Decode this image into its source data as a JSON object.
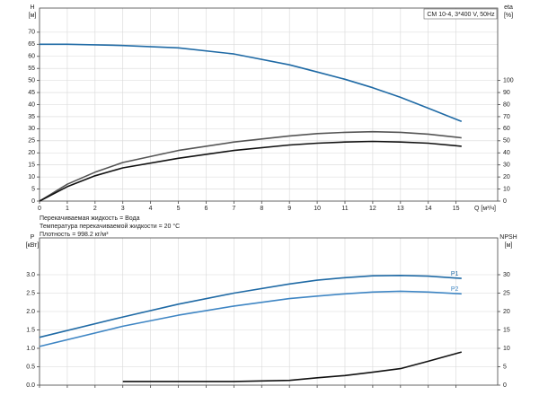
{
  "chart_data": [
    {
      "type": "line",
      "box_label": "CM 10-4, 3*400 V, 50Hz",
      "ylabel": "H",
      "yunit": "[м]",
      "y2label": "eta",
      "y2unit": "[%]",
      "xlabel": "Q [м³/ч]",
      "x": [
        0,
        1,
        2,
        3,
        5,
        7,
        9,
        10,
        11,
        12,
        13,
        14,
        15.2
      ],
      "xlim": [
        0,
        16.5
      ],
      "xticks": [
        0,
        1,
        2,
        3,
        4,
        5,
        6,
        7,
        8,
        9,
        10,
        11,
        12,
        13,
        14,
        15
      ],
      "xtick_labels": true,
      "ylim": [
        0,
        80
      ],
      "yticks": [
        0,
        5,
        10,
        15,
        20,
        25,
        30,
        35,
        40,
        45,
        50,
        55,
        60,
        65,
        70
      ],
      "y2lim": [
        0,
        160
      ],
      "y2ticks": [
        0,
        10,
        20,
        30,
        40,
        50,
        60,
        70,
        80,
        90,
        100
      ],
      "grid": true,
      "series": [
        {
          "color": "#1f6aa5",
          "values": [
            65,
            65,
            64.8,
            64.5,
            63.5,
            61,
            56.5,
            53.5,
            50.5,
            47,
            43,
            38.5,
            33
          ]
        },
        {
          "color": "#555555",
          "axis": "y2",
          "values": [
            0,
            14,
            24,
            32,
            42,
            49,
            54,
            56,
            57,
            57.5,
            57,
            55.5,
            52.5
          ]
        },
        {
          "color": "#111111",
          "axis": "y2",
          "values": [
            0,
            12,
            21,
            27.5,
            35.5,
            42,
            46.5,
            48,
            49,
            49.5,
            49,
            48,
            45.5
          ]
        }
      ],
      "notes": [
        "Перекачиваемая жидкость = Вода",
        "Температура перекачиваемой жидкости = 20 °C",
        "Плотность = 998.2 кг/м³"
      ]
    },
    {
      "type": "line",
      "ylabel": "P",
      "yunit": "[кВт]",
      "y2label": "NPSH",
      "y2unit": "[м]",
      "x": [
        0,
        3,
        5,
        7,
        9,
        10,
        11,
        12,
        13,
        14,
        15.2
      ],
      "xlim": [
        0,
        16.5
      ],
      "xticks": [
        0,
        1,
        2,
        3,
        4,
        5,
        6,
        7,
        8,
        9,
        10,
        11,
        12,
        13,
        14,
        15
      ],
      "xtick_labels": false,
      "ylim": [
        0,
        4
      ],
      "yticks": [
        {
          "value": 0,
          "label": "0.0"
        },
        0.5,
        {
          "value": 1,
          "label": "1.0"
        },
        1.5,
        {
          "value": 2,
          "label": "2.0"
        },
        2.5,
        {
          "value": 3,
          "label": "3.0"
        }
      ],
      "y2lim": [
        0,
        40
      ],
      "y2ticks": [
        0,
        5,
        10,
        15,
        20,
        25,
        30
      ],
      "grid": true,
      "series": [
        {
          "name": "P1",
          "color": "#1f6aa5",
          "values": [
            1.3,
            1.85,
            2.2,
            2.5,
            2.75,
            2.85,
            2.92,
            2.97,
            2.98,
            2.96,
            2.9
          ]
        },
        {
          "name": "P2",
          "color": "#3f86c4",
          "values": [
            1.05,
            1.6,
            1.9,
            2.15,
            2.35,
            2.42,
            2.48,
            2.53,
            2.55,
            2.53,
            2.48
          ]
        },
        {
          "color": "#111111",
          "axis": "y2",
          "values": [
            null,
            1,
            1,
            1,
            1.3,
            2,
            2.6,
            3.5,
            4.5,
            6.5,
            9
          ]
        }
      ]
    }
  ]
}
